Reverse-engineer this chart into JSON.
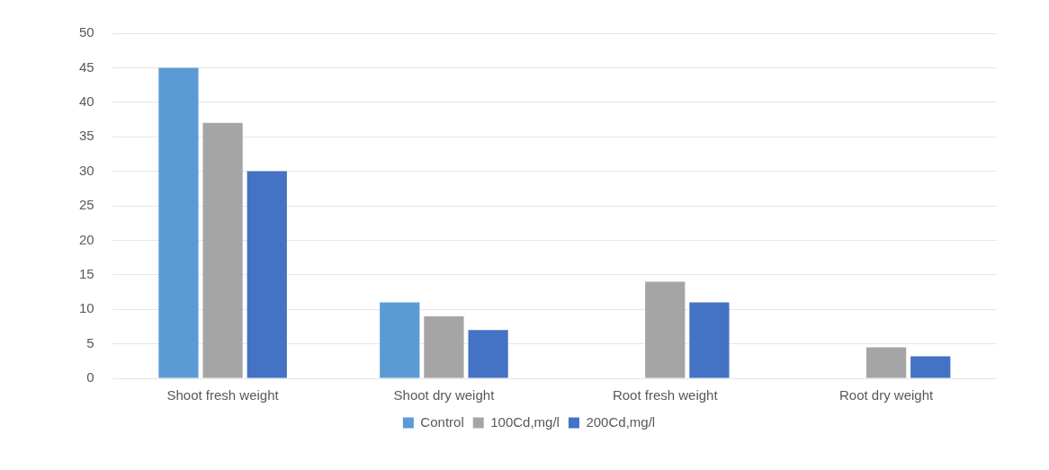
{
  "chart_data": {
    "type": "bar",
    "categories": [
      "Shoot fresh weight",
      "Shoot dry weight",
      "Root fresh weight",
      "Root dry weight"
    ],
    "series": [
      {
        "name": "Control",
        "color": "#5b9bd5",
        "values": [
          45,
          11,
          null,
          null
        ]
      },
      {
        "name": "100Cd,mg/l",
        "color": "#a5a5a5",
        "values": [
          37,
          9,
          14,
          4.5
        ]
      },
      {
        "name": "200Cd,mg/l",
        "color": "#4472c4",
        "values": [
          30,
          7,
          11,
          3.2
        ]
      }
    ],
    "ylim": [
      0,
      50
    ],
    "yticks": [
      0,
      5,
      10,
      15,
      20,
      25,
      30,
      35,
      40,
      45,
      50
    ],
    "grid": "y",
    "legend": "bottom"
  }
}
